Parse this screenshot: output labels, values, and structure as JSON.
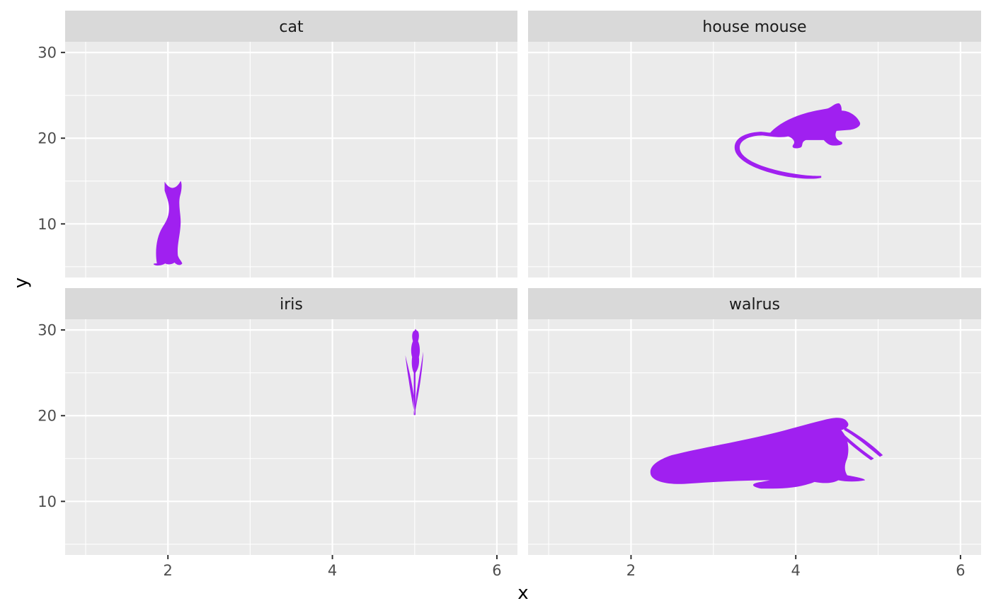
{
  "chart_data": {
    "type": "scatter",
    "facets": [
      "cat",
      "house mouse",
      "iris",
      "walrus"
    ],
    "xlabel": "x",
    "ylabel": "y",
    "xlim": [
      0.75,
      6.25
    ],
    "ylim": [
      3.75,
      31.25
    ],
    "x_ticks": [
      2,
      4,
      6
    ],
    "x_minor": [
      1,
      3,
      5
    ],
    "y_ticks": [
      10,
      20,
      30
    ],
    "y_minor": [
      5,
      15,
      25
    ],
    "grid": true,
    "marker": "phylopic silhouette",
    "points": [
      {
        "facet": "cat",
        "name": "cat",
        "x": 2,
        "y": 10
      },
      {
        "facet": "house mouse",
        "name": "house mouse",
        "x": 4,
        "y": 20
      },
      {
        "facet": "iris",
        "name": "iris",
        "x": 5,
        "y": 25
      },
      {
        "facet": "walrus",
        "name": "walrus",
        "x": 3,
        "y": 15
      }
    ],
    "colors": {
      "panel_background": "#ebebeb",
      "strip_background": "#d9d9d9",
      "grid": "#ffffff",
      "marker": "#a020f0",
      "tick_text": "#4d4d4d",
      "axis_ticks": "#333333"
    }
  }
}
